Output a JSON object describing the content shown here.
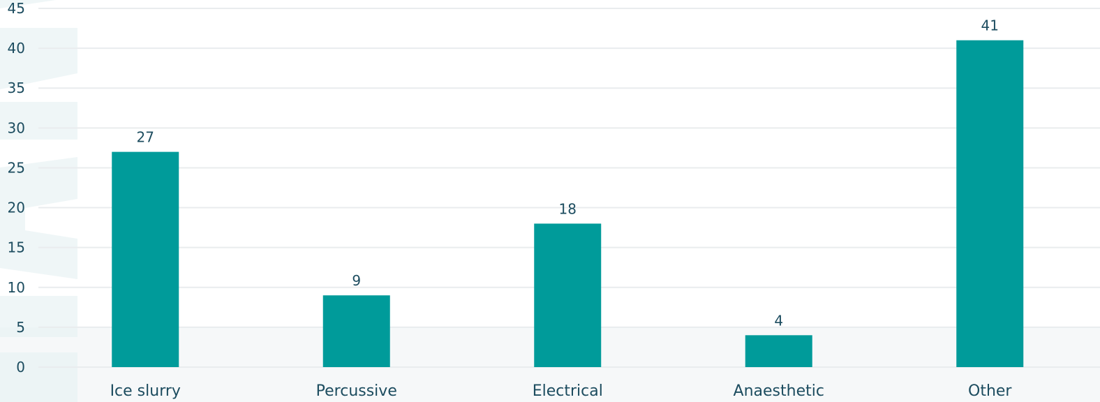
{
  "chart_data": {
    "type": "bar",
    "categories": [
      "Ice slurry",
      "Percussive",
      "Electrical",
      "Anaesthetic",
      "Other"
    ],
    "values": [
      27,
      9,
      18,
      4,
      41
    ],
    "ylim": [
      0,
      45
    ],
    "yticks": [
      0,
      5,
      10,
      15,
      20,
      25,
      30,
      35,
      40,
      45
    ],
    "ytick_labels": [
      "0",
      "5",
      "10",
      "15",
      "20",
      "25",
      "30",
      "35",
      "40",
      "45"
    ],
    "value_labels": [
      "27",
      "9",
      "18",
      "4",
      "41"
    ],
    "grid": true,
    "legend": "none",
    "colors": {
      "bar": "#009b9a",
      "grid": "#e9ecee",
      "text": "#1c4c5f",
      "watermark": "#e6f1f3",
      "band": "#f6f8f9"
    }
  }
}
